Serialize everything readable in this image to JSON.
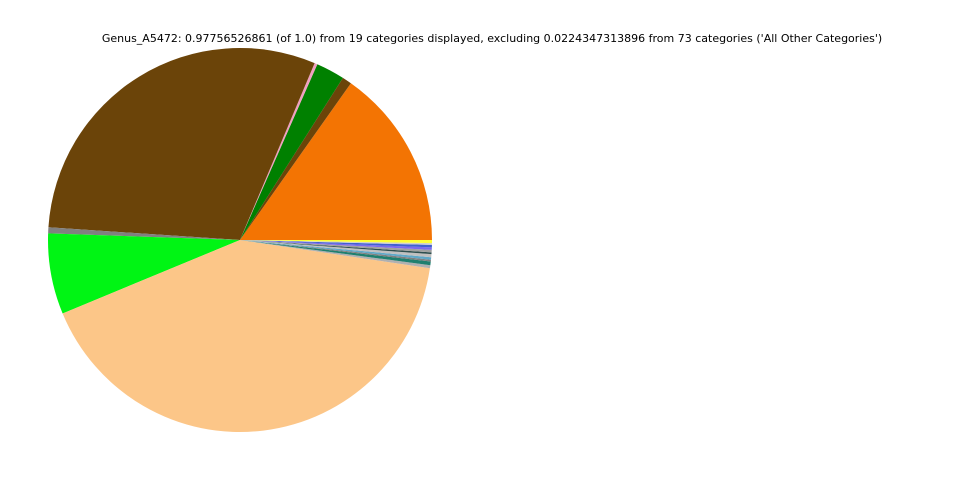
{
  "chart_data": {
    "type": "pie",
    "title": "Genus_A5472: 0.97756526861 (of 1.0) from 19 categories displayed, excluding 0.0224347313896 from 73 categories ('All Other Categories')",
    "categories": [
      null,
      null,
      null,
      null,
      null,
      null,
      null,
      null,
      null,
      null,
      null,
      null,
      null,
      null,
      null,
      null,
      null,
      null,
      null
    ],
    "values": [
      0.1486,
      0.0078,
      0.0235,
      0.0024,
      0.2962,
      0.0049,
      0.0665,
      0.4047,
      0.0025,
      0.003,
      0.0015,
      0.002,
      0.0025,
      0.0015,
      0.002,
      0.002,
      0.002,
      0.0015,
      0.0025
    ],
    "colors": [
      "#f37403",
      "#6b4409",
      "#008000",
      "#f0a0c0",
      "#6b4409",
      "#808080",
      "#00f514",
      "#fcc688",
      "#b0b0b0",
      "#1f7f6f",
      "#808080",
      "#5fa8c8",
      "#c0c0c0",
      "#2f4f4f",
      "#a0a0a0",
      "#7b68ee",
      "#4060d0",
      "#d0d0d0",
      "#ffff33"
    ]
  }
}
